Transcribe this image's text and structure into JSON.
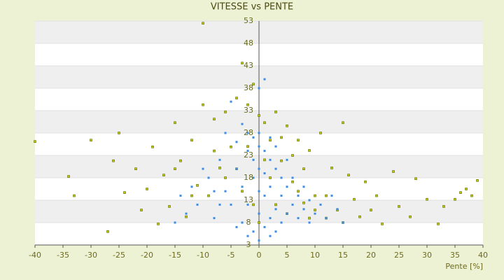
{
  "chart_data": {
    "type": "scatter",
    "title": "VITESSE vs PENTE",
    "x_label": "Pente [%]",
    "xlim": [
      -40,
      40
    ],
    "xticks": [
      -40,
      -35,
      -30,
      -25,
      -20,
      -15,
      -10,
      -5,
      0,
      5,
      10,
      15,
      20,
      25,
      30,
      35,
      40
    ],
    "ylim": [
      3,
      53
    ],
    "yticks": [
      3,
      8,
      13,
      18,
      23,
      28,
      33,
      38,
      43,
      48,
      53
    ],
    "grid": true,
    "series": [
      {
        "name": "olive",
        "color": "#c8c800",
        "x": [
          -40,
          -34,
          -33,
          -30,
          -27,
          -26,
          -25,
          -24,
          -22,
          -21,
          -20,
          -19,
          -18,
          -17,
          -16,
          -15,
          -14,
          -13,
          -12,
          -11,
          -10,
          -10,
          -9,
          -8,
          -7,
          -6,
          -5,
          -4,
          -3,
          -2,
          -1,
          0,
          1,
          2,
          3,
          4,
          5,
          6,
          7,
          8,
          9,
          10,
          11,
          12,
          13,
          14,
          15,
          16,
          17,
          18,
          19,
          20,
          21,
          22,
          24,
          25,
          27,
          28,
          30,
          32,
          33,
          35,
          36,
          37,
          38,
          39,
          -4,
          -3,
          -2,
          -1,
          0,
          1,
          2,
          3,
          4,
          5,
          6,
          7,
          8,
          9,
          10,
          -6,
          -8,
          -12,
          -15,
          12,
          15
        ],
        "values": [
          26.1,
          18.3,
          14,
          26.4,
          6,
          21.8,
          28,
          14.7,
          20,
          10.8,
          15.5,
          24.9,
          7.7,
          18.6,
          11.6,
          30.3,
          21.8,
          9.3,
          26.4,
          16.3,
          34.3,
          52.5,
          14,
          31.1,
          20.2,
          32.7,
          24.9,
          35.8,
          43.6,
          34.3,
          38.9,
          31.9,
          30.3,
          26.4,
          32.7,
          21.8,
          29.6,
          17.1,
          26.4,
          12.4,
          24.1,
          10.8,
          28,
          14,
          20.2,
          10.8,
          30.3,
          18.6,
          13.2,
          9.3,
          17.1,
          10.8,
          14,
          7.7,
          19.4,
          11.6,
          9.3,
          17.8,
          13.2,
          7.7,
          11.6,
          13.2,
          14.7,
          15.5,
          14,
          17.4,
          20,
          15,
          25,
          12,
          8,
          22,
          18,
          12,
          27,
          10,
          23,
          15,
          20,
          9,
          14,
          18,
          24,
          14,
          20,
          9,
          8
        ]
      },
      {
        "name": "blue",
        "color": "#3a8ee6",
        "x": [
          -15,
          -14,
          -13,
          -12,
          -11,
          -10,
          -9,
          -8,
          -7,
          -6,
          -6,
          -5,
          -5,
          -4,
          -4,
          -3,
          -3,
          -3,
          -2,
          -2,
          -2,
          -1,
          -1,
          -1,
          -1,
          0,
          0,
          0,
          0,
          0,
          0,
          0,
          1,
          1,
          1,
          1,
          1,
          2,
          2,
          2,
          2,
          3,
          3,
          3,
          4,
          4,
          4,
          5,
          5,
          5,
          6,
          6,
          7,
          7,
          8,
          8,
          9,
          9,
          10,
          11,
          12,
          13,
          14,
          15,
          -8,
          -7,
          2,
          -2,
          3,
          -4
        ],
        "values": [
          8,
          14,
          10,
          16,
          12,
          20,
          18,
          9,
          22,
          15,
          28,
          12,
          35,
          20,
          26,
          8,
          30,
          16,
          24,
          12,
          28,
          6,
          18,
          27,
          22,
          4,
          10,
          15,
          20,
          25,
          28,
          38,
          7,
          14,
          19,
          24,
          40,
          9,
          16,
          22,
          27,
          11,
          20,
          25,
          8,
          14,
          18,
          10,
          16,
          22,
          12,
          18,
          9,
          14,
          11,
          16,
          8,
          13,
          10,
          12,
          9,
          14,
          11,
          8,
          15,
          12,
          5,
          5,
          6,
          7
        ]
      }
    ]
  }
}
